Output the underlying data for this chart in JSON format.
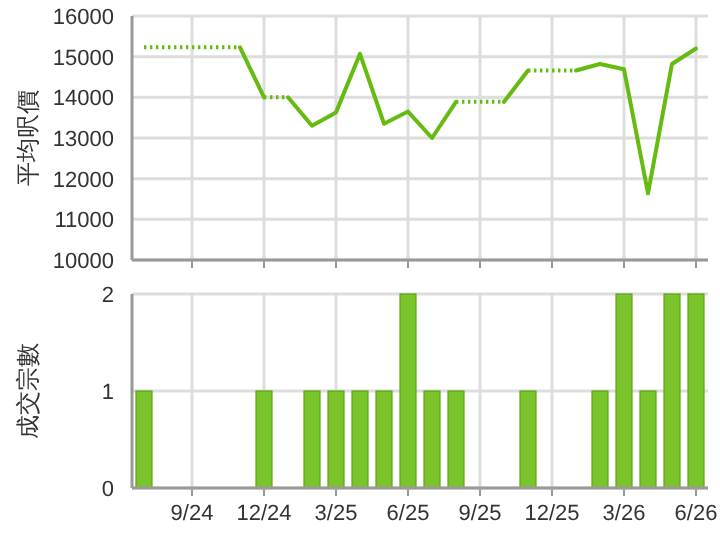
{
  "chart_data": [
    {
      "type": "line",
      "ylabel": "平均呎價",
      "categories": [
        null,
        null,
        null,
        null,
        null,
        null,
        null,
        null,
        null,
        null,
        null,
        null,
        null,
        null,
        null,
        null,
        null,
        null,
        null,
        null,
        null,
        null,
        null,
        null
      ],
      "ylim": [
        10000,
        16000
      ],
      "yticks": [
        10000,
        11000,
        12000,
        13000,
        14000,
        15000,
        16000
      ],
      "grid": true,
      "tick_labels": "y",
      "series": [
        {
          "color": "#66bb11",
          "line_style": "dotted",
          "values": [
            15230,
            15230,
            15230,
            15230,
            15230,
            null,
            null,
            null,
            null,
            null,
            null,
            null,
            null,
            null,
            null,
            null,
            null,
            null,
            null,
            null,
            null,
            null,
            null,
            null
          ]
        },
        {
          "color": "#66bb11",
          "line_style": "solid",
          "values": [
            null,
            null,
            null,
            null,
            15230,
            14000,
            null,
            null,
            null,
            null,
            null,
            null,
            null,
            null,
            null,
            null,
            null,
            null,
            null,
            null,
            null,
            null,
            null,
            null
          ]
        },
        {
          "color": "#66bb11",
          "line_style": "dotted",
          "values": [
            null,
            null,
            null,
            null,
            null,
            14000,
            14000,
            null,
            null,
            null,
            null,
            null,
            null,
            null,
            null,
            null,
            null,
            null,
            null,
            null,
            null,
            null,
            null,
            null
          ]
        },
        {
          "color": "#66bb11",
          "line_style": "solid",
          "values": [
            null,
            null,
            null,
            null,
            null,
            null,
            14000,
            13300,
            13630,
            15070,
            13350,
            13650,
            13000,
            13890,
            null,
            null,
            null,
            null,
            null,
            null,
            null,
            null,
            null,
            null
          ]
        },
        {
          "color": "#66bb11",
          "line_style": "dotted",
          "values": [
            null,
            null,
            null,
            null,
            null,
            null,
            null,
            null,
            null,
            null,
            null,
            null,
            null,
            13890,
            13890,
            13890,
            null,
            null,
            null,
            null,
            null,
            null,
            null,
            null
          ]
        },
        {
          "color": "#66bb11",
          "line_style": "solid",
          "values": [
            null,
            null,
            null,
            null,
            null,
            null,
            null,
            null,
            null,
            null,
            null,
            null,
            null,
            null,
            null,
            13890,
            14660,
            null,
            null,
            null,
            null,
            null,
            null,
            null
          ]
        },
        {
          "color": "#66bb11",
          "line_style": "dotted",
          "values": [
            null,
            null,
            null,
            null,
            null,
            null,
            null,
            null,
            null,
            null,
            null,
            null,
            null,
            null,
            null,
            null,
            14660,
            14660,
            14660,
            null,
            null,
            null,
            null,
            null
          ]
        },
        {
          "color": "#66bb11",
          "line_style": "solid",
          "values": [
            null,
            null,
            null,
            null,
            null,
            null,
            null,
            null,
            null,
            null,
            null,
            null,
            null,
            null,
            null,
            null,
            null,
            null,
            14660,
            14820,
            14690,
            11640,
            14820,
            15200
          ]
        }
      ]
    },
    {
      "type": "bar",
      "ylabel": "成交宗數",
      "categories": [
        null,
        null,
        "9/24",
        null,
        null,
        "12/24",
        null,
        null,
        "3/25",
        null,
        null,
        "6/25",
        null,
        null,
        "9/25",
        null,
        null,
        "12/25",
        null,
        null,
        "3/26",
        null,
        null,
        "6/26"
      ],
      "ylim": [
        0,
        2
      ],
      "yticks": [
        0,
        1,
        2
      ],
      "grid": true,
      "color": "#7cc42c",
      "values": [
        1,
        0,
        0,
        0,
        0,
        1,
        0,
        1,
        1,
        1,
        1,
        2,
        1,
        1,
        0,
        0,
        1,
        0,
        0,
        1,
        2,
        1,
        2,
        2
      ]
    }
  ]
}
